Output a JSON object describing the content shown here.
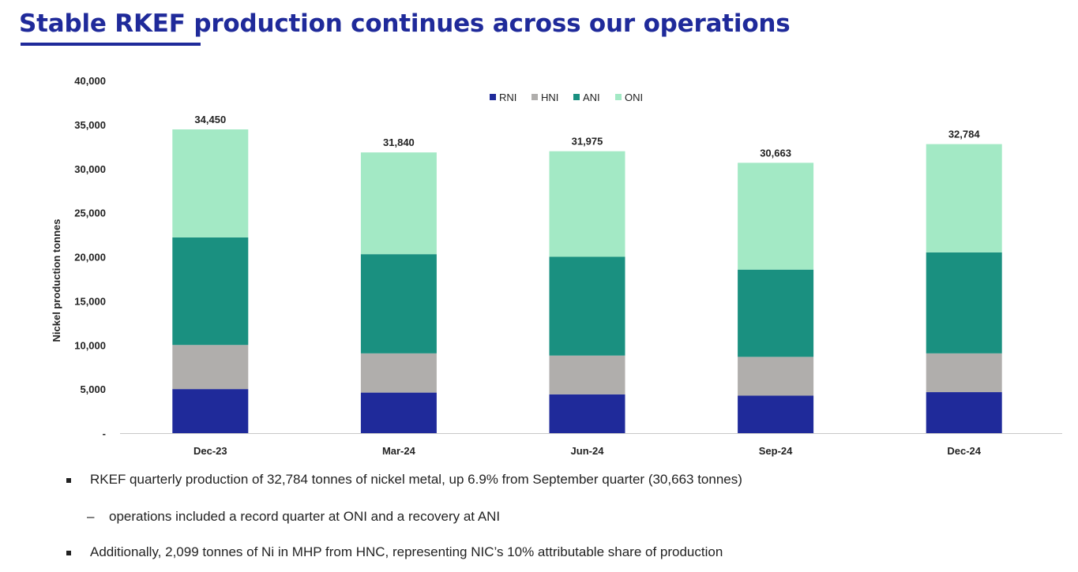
{
  "header": {
    "title": "Stable RKEF production continues across our operations"
  },
  "bullets": [
    {
      "marker": "square",
      "text": "RKEF quarterly production of 32,784 tonnes of nickel metal, up 6.9% from September quarter (30,663 tonnes)"
    },
    {
      "marker": "–",
      "text": "operations included a record quarter at ONI and a recovery at ANI"
    },
    {
      "marker": "square",
      "text": "Additionally, 2,099 tonnes of Ni in MHP from HNC, representing NIC’s 10% attributable share of production"
    }
  ],
  "chart_data": {
    "type": "bar",
    "stacked": true,
    "categories": [
      "Dec-23",
      "Mar-24",
      "Jun-24",
      "Sep-24",
      "Dec-24"
    ],
    "series": [
      {
        "name": "RNI",
        "color": "#1f2a9a",
        "values": [
          5000,
          4600,
          4400,
          4250,
          4650
        ]
      },
      {
        "name": "HNI",
        "color": "#b0aeac",
        "values": [
          5000,
          4450,
          4400,
          4400,
          4400
        ]
      },
      {
        "name": "ANI",
        "color": "#1a9080",
        "values": [
          12200,
          11250,
          11200,
          9900,
          11450
        ]
      },
      {
        "name": "ONI",
        "color": "#a3e9c5",
        "values": [
          12250,
          11540,
          11975,
          12113,
          12284
        ]
      }
    ],
    "totals": [
      "34,450",
      "31,840",
      "31,975",
      "30,663",
      "32,784"
    ],
    "total_values": [
      34450,
      31840,
      31975,
      30663,
      32784
    ],
    "ylabel": "Nickel production tonnes",
    "ylim": [
      0,
      40000
    ],
    "yticks": [
      0,
      5000,
      10000,
      15000,
      20000,
      25000,
      30000,
      35000,
      40000
    ],
    "ytick_labels": [
      "-",
      "5,000",
      "10,000",
      "15,000",
      "20,000",
      "25,000",
      "30,000",
      "35,000",
      "40,000"
    ],
    "legend_position": "top-center",
    "grid": false
  }
}
